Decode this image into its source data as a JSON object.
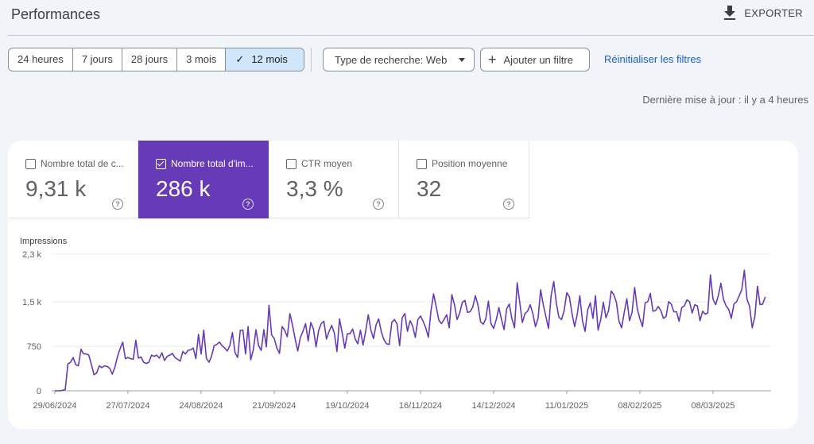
{
  "header": {
    "title": "Performances",
    "export_label": "EXPORTER"
  },
  "date_range": {
    "options": [
      "24 heures",
      "7 jours",
      "28 jours",
      "3 mois",
      "12 mois"
    ],
    "selected": "12 mois"
  },
  "filters": {
    "search_type_label": "Type de recherche: Web",
    "add_filter_label": "Ajouter un filtre",
    "reset_label": "Réinitialiser les filtres"
  },
  "last_updated": "Dernière mise à jour : il y a 4 heures",
  "metrics": [
    {
      "label": "Nombre total de c...",
      "value": "9,31 k",
      "checked": false
    },
    {
      "label": "Nombre total d'im...",
      "value": "286 k",
      "checked": true
    },
    {
      "label": "CTR moyen",
      "value": "3,3 %",
      "checked": false
    },
    {
      "label": "Position moyenne",
      "value": "32",
      "checked": false
    }
  ],
  "colors": {
    "accent": "#673ab7",
    "link": "#1a5fc8",
    "selected_date": "#cfe6fb"
  },
  "chart_data": {
    "type": "line",
    "ylabel": "Impressions",
    "ylim": [
      0,
      2300
    ],
    "yticks": [
      0,
      750,
      1500,
      2300
    ],
    "ytick_labels": [
      "0",
      "750",
      "1,5 k",
      "2,3 k"
    ],
    "xtick_labels": [
      "29/06/2024",
      "27/07/2024",
      "24/08/2024",
      "21/09/2024",
      "19/10/2024",
      "16/11/2024",
      "14/12/2024",
      "11/01/2025",
      "08/02/2025",
      "08/03/2025"
    ],
    "x_start": "2024-06-29",
    "grid": true,
    "series": [
      {
        "color": "#673ab7",
        "values": [
          0,
          0,
          0,
          10,
          20,
          450,
          480,
          560,
          440,
          420,
          700,
          620,
          620,
          600,
          440,
          270,
          300,
          420,
          390,
          420,
          410,
          380,
          280,
          400,
          580,
          710,
          820,
          540,
          560,
          540,
          530,
          850,
          550,
          570,
          480,
          460,
          480,
          600,
          580,
          600,
          550,
          640,
          510,
          580,
          600,
          630,
          560,
          530,
          500,
          660,
          620,
          680,
          690,
          720,
          540,
          950,
          620,
          1020,
          550,
          480,
          580,
          760,
          780,
          820,
          760,
          720,
          670,
          760,
          980,
          640,
          560,
          1020,
          1020,
          620,
          1080,
          520,
          690,
          1030,
          760,
          680,
          1030,
          740,
          1440,
          940,
          880,
          720,
          630,
          1080,
          1020,
          910,
          1300,
          1100,
          870,
          670,
          900,
          1000,
          1130,
          840,
          1150,
          1040,
          740,
          1020,
          1130,
          1170,
          870,
          1000,
          1100,
          970,
          660,
          1210,
          980,
          720,
          960,
          960,
          1040,
          870,
          790,
          1020,
          770,
          1000,
          1280,
          1020,
          880,
          1110,
          1210,
          990,
          860,
          790,
          780,
          1150,
          1200,
          1130,
          760,
          1230,
          1300,
          1000,
          1180,
          1090,
          900,
          1200,
          1260,
          1170,
          1060,
          900,
          1340,
          1630,
          1420,
          1190,
          1130,
          1200,
          1280,
          1060,
          1620,
          1450,
          1200,
          1310,
          1490,
          1520,
          1320,
          1330,
          1410,
          1600,
          1440,
          1160,
          1120,
          1210,
          1510,
          1130,
          1050,
          1200,
          1400,
          1200,
          1030,
          1380,
          1460,
          1210,
          1060,
          1820,
          1480,
          1150,
          1300,
          1340,
          1450,
          1300,
          1080,
          1220,
          1700,
          1450,
          1250,
          1050,
          1600,
          1840,
          1470,
          1240,
          1200,
          1350,
          1650,
          1580,
          1300,
          1080,
          1280,
          1600,
          1180,
          1000,
          1360,
          1480,
          1220,
          1600,
          1020,
          1200,
          1490,
          1230,
          1350,
          1680,
          1620,
          1490,
          1170,
          1060,
          1320,
          1550,
          1180,
          1320,
          1740,
          1380,
          1210,
          1080,
          1480,
          1500,
          1640,
          1340,
          1350,
          1420,
          1350,
          1220,
          1250,
          1500,
          1460,
          1330,
          1330,
          1170,
          1400,
          1430,
          1530,
          1500,
          1310,
          1450,
          1430,
          1180,
          1340,
          1290,
          1310,
          1950,
          1540,
          1450,
          1600,
          1810,
          1540,
          1430,
          1370,
          1220,
          1460,
          1500,
          1600,
          1700,
          2030,
          1540,
          1420,
          1060,
          1250,
          1760,
          1450,
          1460,
          1580
        ]
      }
    ]
  }
}
